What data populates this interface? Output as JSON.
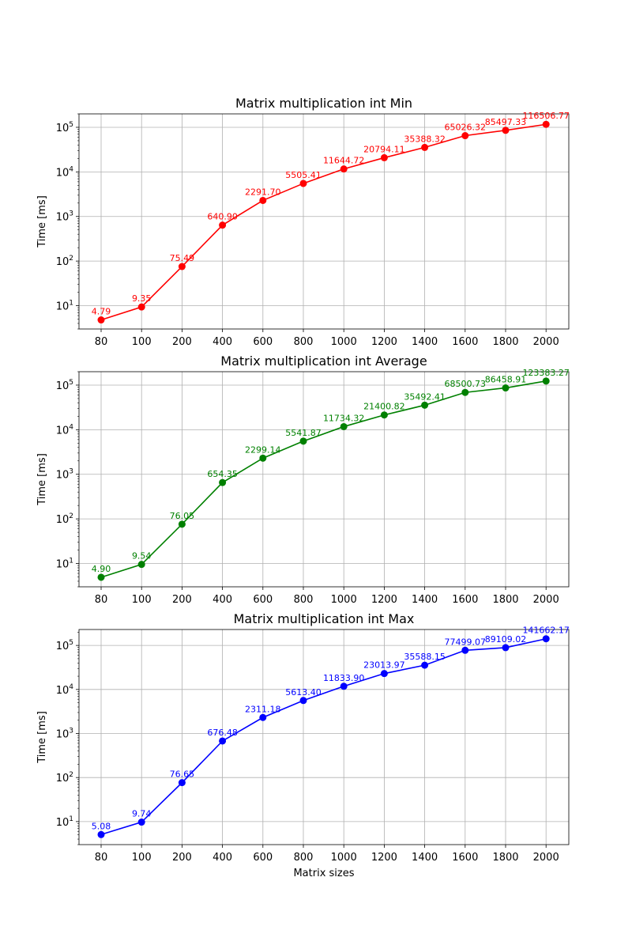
{
  "chart_data": [
    {
      "type": "line",
      "title": "Matrix multiplication int Min",
      "xlabel": "",
      "ylabel": "Time [ms]",
      "yscale": "log",
      "ylim": [
        3,
        200000
      ],
      "y_ticks": [
        10,
        100,
        1000,
        10000,
        100000
      ],
      "grid": true,
      "color": "#ff0000",
      "categories": [
        "80",
        "100",
        "200",
        "400",
        "600",
        "800",
        "1000",
        "1200",
        "1400",
        "1600",
        "1800",
        "2000"
      ],
      "values": [
        4.79,
        9.35,
        75.49,
        640.9,
        2291.7,
        5505.41,
        11644.72,
        20794.11,
        35388.32,
        65026.32,
        85497.33,
        116506.77
      ],
      "value_labels": [
        "4.79",
        "9.35",
        "75.49",
        "640.90",
        "2291.70",
        "5505.41",
        "11644.72",
        "20794.11",
        "35388.32",
        "65026.32",
        "85497.33",
        "116506.77"
      ]
    },
    {
      "type": "line",
      "title": "Matrix multiplication int Average",
      "xlabel": "",
      "ylabel": "Time [ms]",
      "yscale": "log",
      "ylim": [
        3,
        200000
      ],
      "y_ticks": [
        10,
        100,
        1000,
        10000,
        100000
      ],
      "grid": true,
      "color": "#008000",
      "categories": [
        "80",
        "100",
        "200",
        "400",
        "600",
        "800",
        "1000",
        "1200",
        "1400",
        "1600",
        "1800",
        "2000"
      ],
      "values": [
        4.9,
        9.54,
        76.05,
        654.35,
        2299.14,
        5541.87,
        11734.32,
        21400.82,
        35492.41,
        68500.73,
        86458.91,
        123383.27
      ],
      "value_labels": [
        "4.90",
        "9.54",
        "76.05",
        "654.35",
        "2299.14",
        "5541.87",
        "11734.32",
        "21400.82",
        "35492.41",
        "68500.73",
        "86458.91",
        "123383.27"
      ]
    },
    {
      "type": "line",
      "title": "Matrix multiplication int Max",
      "xlabel": "Matrix sizes",
      "ylabel": "Time [ms]",
      "yscale": "log",
      "ylim": [
        3,
        230000
      ],
      "y_ticks": [
        10,
        100,
        1000,
        10000,
        100000
      ],
      "grid": true,
      "color": "#0000ff",
      "categories": [
        "80",
        "100",
        "200",
        "400",
        "600",
        "800",
        "1000",
        "1200",
        "1400",
        "1600",
        "1800",
        "2000"
      ],
      "values": [
        5.08,
        9.74,
        76.65,
        676.48,
        2311.18,
        5613.4,
        11833.9,
        23013.97,
        35588.15,
        77499.07,
        89109.02,
        141662.17
      ],
      "value_labels": [
        "5.08",
        "9.74",
        "76.65",
        "676.48",
        "2311.18",
        "5613.40",
        "11833.90",
        "23013.97",
        "35588.15",
        "77499.07",
        "89109.02",
        "141662.17"
      ]
    }
  ]
}
